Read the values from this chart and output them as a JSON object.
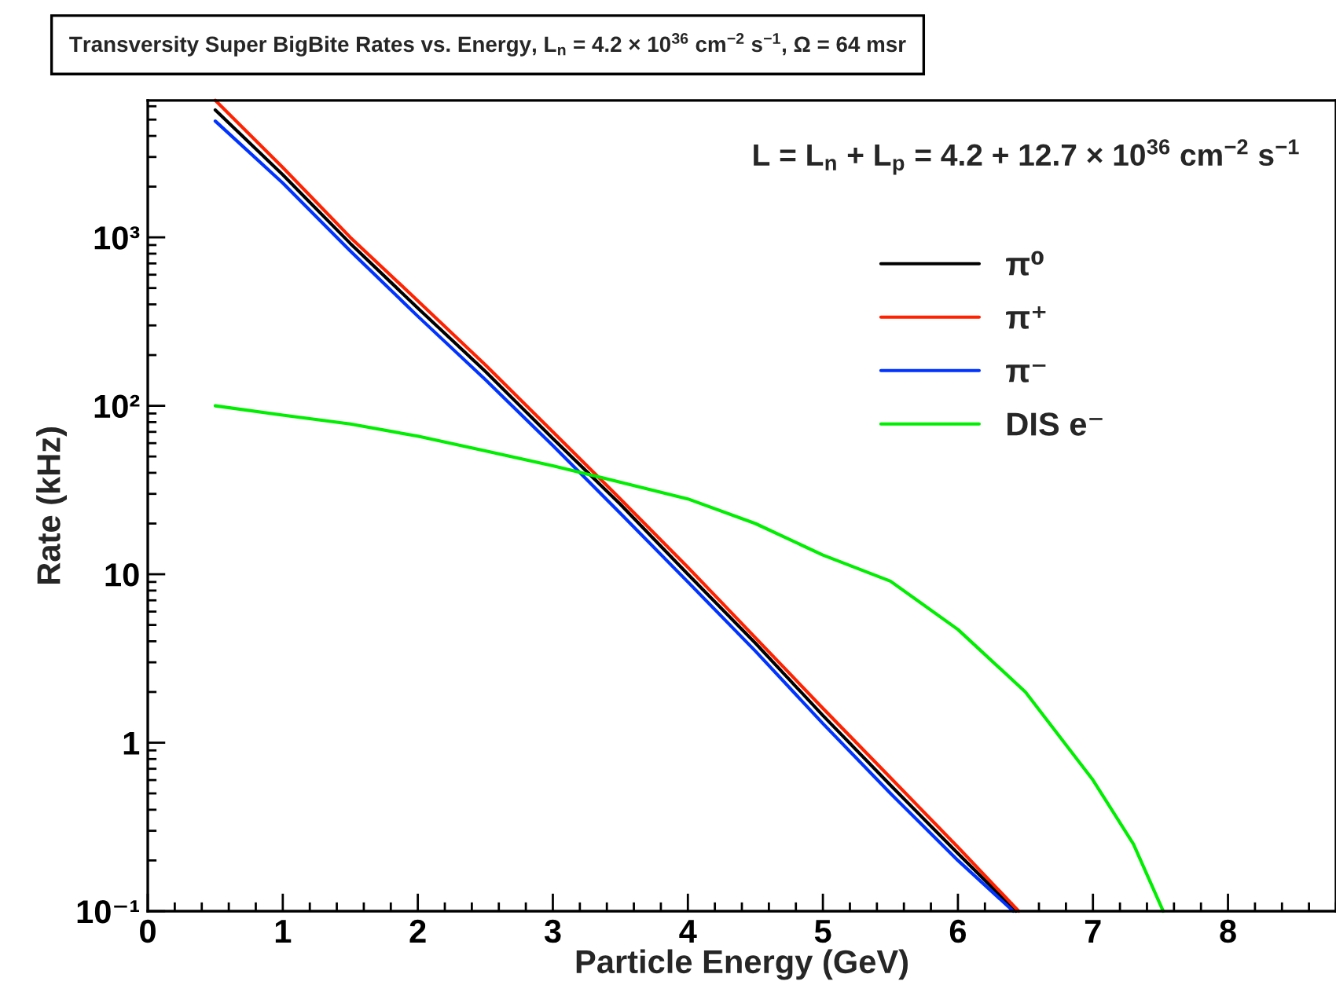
{
  "chart_data": {
    "type": "line",
    "title": "Transversity Super BigBite Rates vs. Energy, L$_{n}$ = 4.2 × 10$^{36}$ cm$^{−2}$ s$^{−1}$, Ω = 64 msr",
    "xlabel": "Particle Energy (GeV)",
    "ylabel": "Rate (kHz)",
    "annotations": [
      "L = L$_{n}$ + L$_{p}$ = 4.2 + 12.7 × 10$^{36}$ cm$^{−2}$ s$^{−1}$"
    ],
    "log": "y",
    "grid": false,
    "legend": "top right",
    "line_style": "solid",
    "marker": "none",
    "xlim": [
      0,
      8.8
    ],
    "xticks": [
      0,
      1,
      2,
      3,
      4,
      5,
      6,
      7,
      8
    ],
    "ylim": [
      0.1,
      6500
    ],
    "yticks": [
      {
        "value": 0.1,
        "label": "10⁻¹"
      },
      1,
      10,
      {
        "value": 100,
        "label": "10²"
      },
      {
        "value": 1000,
        "label": "10³"
      }
    ],
    "series": [
      {
        "name": "π⁰",
        "color": "#000000",
        "x": [
          0.5,
          1.0,
          1.5,
          2.0,
          2.5,
          3.0,
          3.5,
          4.0,
          4.5,
          5.0,
          5.5,
          6.0,
          6.43
        ],
        "values": [
          5700,
          2350,
          920,
          380,
          160,
          64,
          26,
          10,
          3.9,
          1.45,
          0.56,
          0.22,
          0.1
        ]
      },
      {
        "name": "π⁺",
        "color": "#ff2200",
        "x": [
          0.5,
          1.0,
          1.5,
          2.0,
          2.5,
          3.0,
          3.5,
          4.0,
          4.5,
          5.0,
          5.5,
          6.0,
          6.45
        ],
        "values": [
          6500,
          2600,
          1000,
          420,
          175,
          70,
          28,
          11,
          4.2,
          1.6,
          0.62,
          0.24,
          0.1
        ]
      },
      {
        "name": "π⁻",
        "color": "#0033ff",
        "x": [
          0.5,
          1.0,
          1.5,
          2.0,
          2.5,
          3.0,
          3.5,
          4.0,
          4.5,
          5.0,
          5.5,
          6.0,
          6.41
        ],
        "values": [
          4900,
          2100,
          830,
          340,
          143,
          58,
          23,
          9,
          3.5,
          1.3,
          0.5,
          0.2,
          0.1
        ]
      },
      {
        "name": "DIS e⁻",
        "color": "#00ee00",
        "x": [
          0.5,
          1.0,
          1.5,
          2.0,
          2.5,
          3.0,
          3.33,
          4.0,
          4.5,
          5.0,
          5.5,
          6.0,
          6.5,
          7.0,
          7.3,
          7.52
        ],
        "values": [
          100,
          88,
          78,
          66,
          54,
          44,
          38,
          28,
          20,
          13,
          9.1,
          4.7,
          2.0,
          0.6,
          0.25,
          0.1
        ]
      }
    ]
  }
}
